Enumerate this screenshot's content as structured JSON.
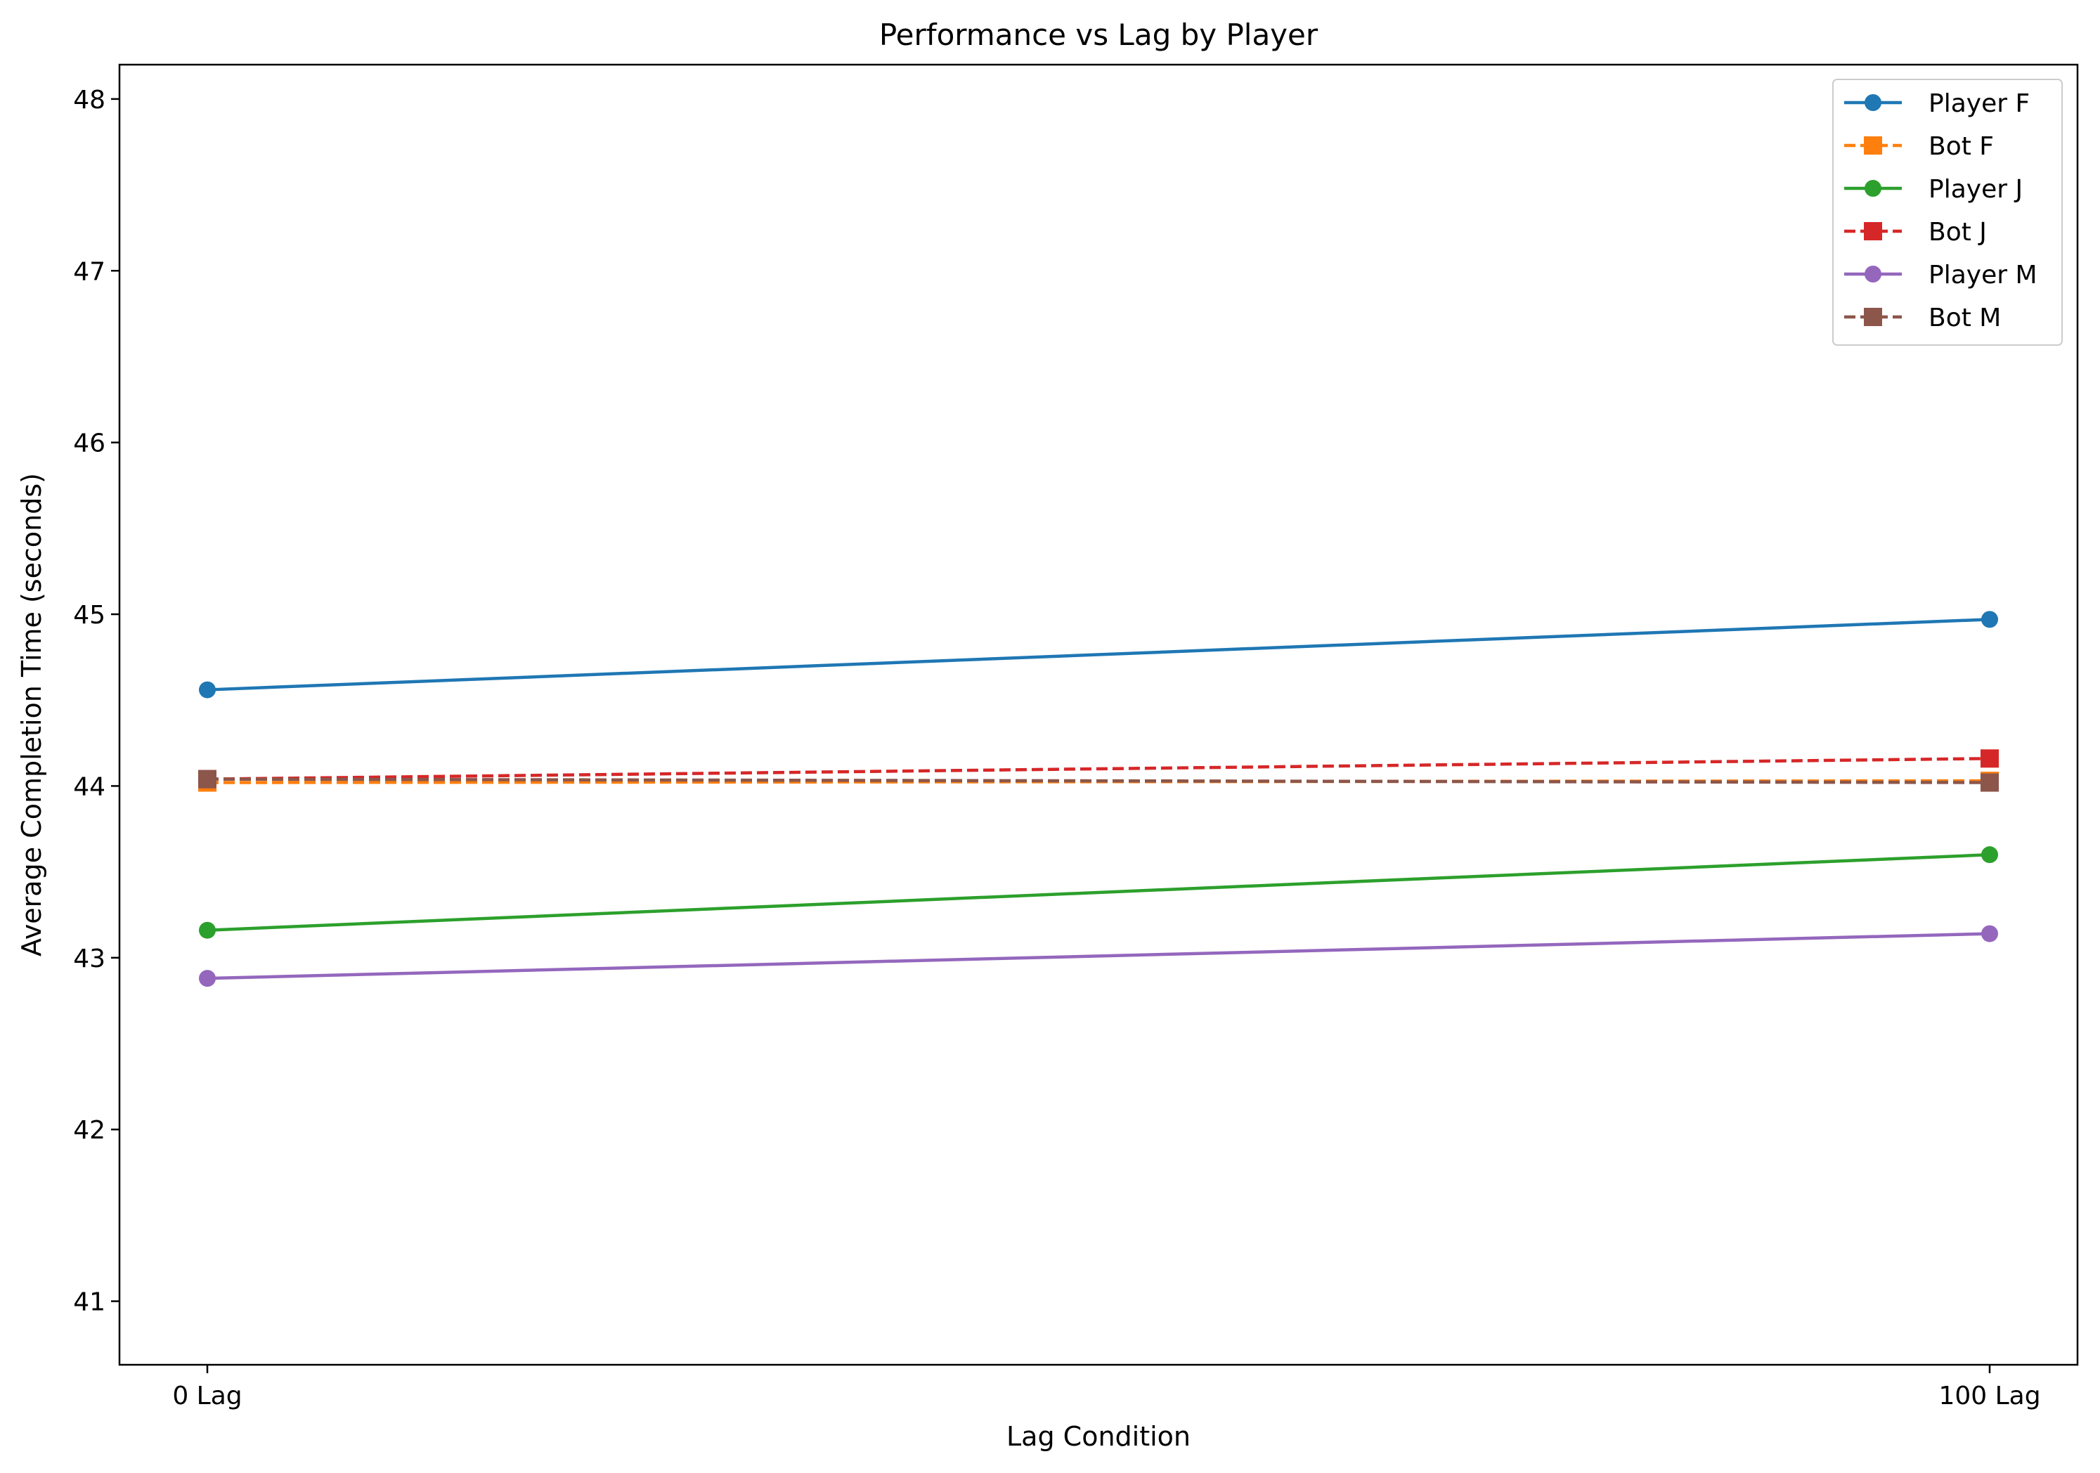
{
  "chart_data": {
    "type": "line",
    "title": "Performance vs Lag by Player",
    "xlabel": "Lag Condition",
    "ylabel": "Average Completion Time (seconds)",
    "categories": [
      "0 Lag",
      "100 Lag"
    ],
    "ylim": [
      40.63,
      48.2
    ],
    "yticks": [
      41,
      42,
      43,
      44,
      45,
      46,
      47,
      48
    ],
    "grid": false,
    "legend_position": "top-right",
    "series": [
      {
        "name": "Player F",
        "values": [
          44.56,
          44.97
        ],
        "color": "#1f77b4",
        "marker": "circle",
        "dashed": false
      },
      {
        "name": "Bot F",
        "values": [
          44.02,
          44.03
        ],
        "color": "#ff7f0e",
        "marker": "square",
        "dashed": true
      },
      {
        "name": "Player J",
        "values": [
          43.16,
          43.6
        ],
        "color": "#2ca02c",
        "marker": "circle",
        "dashed": false
      },
      {
        "name": "Bot J",
        "values": [
          44.04,
          44.16
        ],
        "color": "#d62728",
        "marker": "square",
        "dashed": true
      },
      {
        "name": "Player M",
        "values": [
          42.88,
          43.14
        ],
        "color": "#9467bd",
        "marker": "circle",
        "dashed": false
      },
      {
        "name": "Bot M",
        "values": [
          44.04,
          44.02
        ],
        "color": "#8c564b",
        "marker": "square",
        "dashed": true
      }
    ]
  }
}
